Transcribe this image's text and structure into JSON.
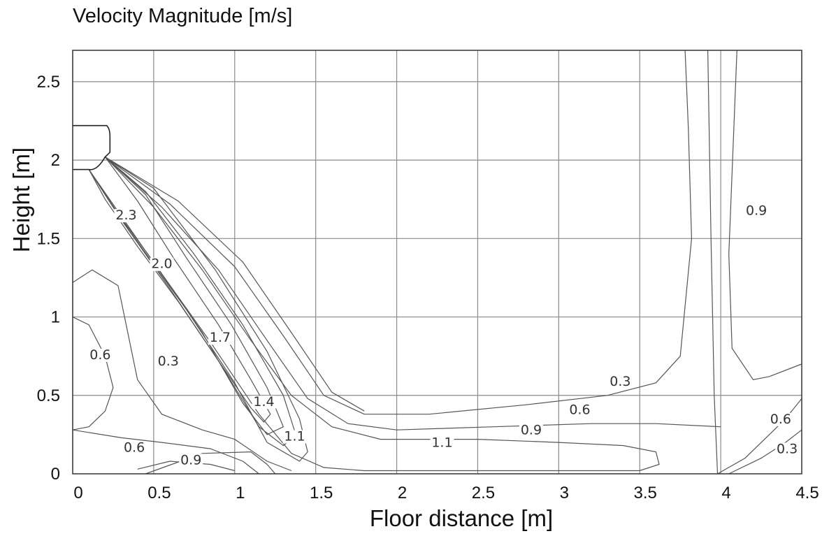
{
  "chart_data": {
    "type": "contour",
    "title": "Velocity Magnitude [m/s]",
    "xlabel": "Floor distance [m]",
    "ylabel": "Height [m]",
    "xlim": [
      0,
      4.5
    ],
    "ylim": [
      0,
      2.7
    ],
    "xticks": [
      "0",
      "0.5",
      "1",
      "1.5",
      "2",
      "2.5",
      "3",
      "3.5",
      "4",
      "4.5"
    ],
    "yticks": [
      "0",
      "0.5",
      "1",
      "1.5",
      "2",
      "2.5"
    ],
    "grid": true,
    "contour_labels": [
      {
        "text": "2.3",
        "x": 0.33,
        "y": 1.63
      },
      {
        "text": "2.0",
        "x": 0.55,
        "y": 1.32
      },
      {
        "text": "1.7",
        "x": 0.91,
        "y": 0.85
      },
      {
        "text": "1.4",
        "x": 1.18,
        "y": 0.44
      },
      {
        "text": "1.1",
        "x": 1.37,
        "y": 0.22
      },
      {
        "text": "0.6",
        "x": 0.17,
        "y": 0.74
      },
      {
        "text": "0.3",
        "x": 0.59,
        "y": 0.7
      },
      {
        "text": "0.6",
        "x": 0.38,
        "y": 0.15
      },
      {
        "text": "0.9",
        "x": 0.73,
        "y": 0.07
      },
      {
        "text": "1.1",
        "x": 2.28,
        "y": 0.18
      },
      {
        "text": "0.9",
        "x": 2.83,
        "y": 0.26
      },
      {
        "text": "0.6",
        "x": 3.13,
        "y": 0.39
      },
      {
        "text": "0.3",
        "x": 3.38,
        "y": 0.57
      },
      {
        "text": "0.9",
        "x": 4.22,
        "y": 1.66
      },
      {
        "text": "0.6",
        "x": 4.37,
        "y": 0.33
      },
      {
        "text": "0.3",
        "x": 4.41,
        "y": 0.14
      }
    ],
    "contours": [
      [
        [
          0.1,
          1.94
        ],
        [
          0.2,
          1.75
        ],
        [
          0.4,
          1.45
        ],
        [
          0.65,
          1.1
        ],
        [
          0.9,
          0.72
        ],
        [
          1.1,
          0.42
        ],
        [
          1.18,
          0.33
        ],
        [
          1.22,
          0.38
        ],
        [
          1.1,
          0.6
        ],
        [
          0.9,
          0.95
        ],
        [
          0.62,
          1.38
        ],
        [
          0.4,
          1.74
        ],
        [
          0.2,
          2.02
        ]
      ],
      [
        [
          0.1,
          1.94
        ],
        [
          0.25,
          1.7
        ],
        [
          0.5,
          1.35
        ],
        [
          0.8,
          0.9
        ],
        [
          1.05,
          0.45
        ],
        [
          1.2,
          0.25
        ],
        [
          1.3,
          0.3
        ],
        [
          1.2,
          0.55
        ],
        [
          0.98,
          0.95
        ],
        [
          0.7,
          1.38
        ],
        [
          0.45,
          1.78
        ],
        [
          0.2,
          2.02
        ]
      ],
      [
        [
          0.1,
          1.94
        ],
        [
          0.3,
          1.62
        ],
        [
          0.6,
          1.18
        ],
        [
          0.9,
          0.72
        ],
        [
          1.15,
          0.3
        ],
        [
          1.3,
          0.18
        ],
        [
          1.38,
          0.24
        ],
        [
          1.3,
          0.5
        ],
        [
          1.05,
          0.95
        ],
        [
          0.75,
          1.4
        ],
        [
          0.45,
          1.8
        ],
        [
          0.2,
          2.02
        ]
      ],
      [
        [
          0.1,
          1.94
        ],
        [
          0.35,
          1.55
        ],
        [
          0.7,
          1.05
        ],
        [
          1.0,
          0.58
        ],
        [
          1.2,
          0.2
        ],
        [
          1.4,
          0.08
        ],
        [
          1.45,
          0.14
        ],
        [
          1.4,
          0.35
        ],
        [
          1.2,
          0.78
        ],
        [
          0.88,
          1.3
        ],
        [
          0.5,
          1.82
        ],
        [
          0.2,
          2.02
        ]
      ],
      [
        [
          0.1,
          1.94
        ],
        [
          0.45,
          1.42
        ],
        [
          0.85,
          0.84
        ],
        [
          1.15,
          0.38
        ],
        [
          1.35,
          0.13
        ],
        [
          1.55,
          0.04
        ],
        [
          1.8,
          0.02
        ],
        [
          3.5,
          0.02
        ]
      ],
      [
        [
          0.2,
          2.02
        ],
        [
          0.5,
          1.7
        ],
        [
          0.8,
          1.3
        ],
        [
          1.1,
          0.85
        ],
        [
          1.35,
          0.5
        ],
        [
          1.6,
          0.3
        ],
        [
          1.9,
          0.22
        ],
        [
          2.5,
          0.22
        ],
        [
          3.0,
          0.2
        ],
        [
          3.4,
          0.18
        ],
        [
          3.6,
          0.14
        ],
        [
          3.62,
          0.06
        ],
        [
          3.5,
          0.02
        ]
      ],
      [
        [
          0.2,
          2.02
        ],
        [
          0.55,
          1.7
        ],
        [
          0.9,
          1.3
        ],
        [
          1.2,
          0.85
        ],
        [
          1.45,
          0.48
        ],
        [
          1.7,
          0.32
        ],
        [
          2.0,
          0.28
        ],
        [
          2.6,
          0.3
        ],
        [
          3.2,
          0.32
        ],
        [
          3.6,
          0.32
        ],
        [
          4.0,
          0.3
        ]
      ],
      [
        [
          0.2,
          2.02
        ],
        [
          0.6,
          1.72
        ],
        [
          1.0,
          1.32
        ],
        [
          1.3,
          0.88
        ],
        [
          1.55,
          0.5
        ],
        [
          1.8,
          0.38
        ],
        [
          2.2,
          0.38
        ],
        [
          2.8,
          0.44
        ],
        [
          3.3,
          0.5
        ],
        [
          3.6,
          0.58
        ],
        [
          3.75,
          0.75
        ],
        [
          3.82,
          1.5
        ],
        [
          3.8,
          2.2
        ],
        [
          3.78,
          2.7
        ]
      ],
      [
        [
          0.2,
          2.02
        ],
        [
          0.65,
          1.74
        ],
        [
          1.05,
          1.35
        ],
        [
          1.35,
          0.9
        ],
        [
          1.6,
          0.52
        ],
        [
          1.8,
          0.4
        ]
      ],
      [
        [
          0,
          1.0
        ],
        [
          0.1,
          0.95
        ],
        [
          0.2,
          0.75
        ],
        [
          0.25,
          0.55
        ],
        [
          0.2,
          0.4
        ],
        [
          0.1,
          0.3
        ],
        [
          0,
          0.28
        ]
      ],
      [
        [
          0,
          1.22
        ],
        [
          0.12,
          1.3
        ],
        [
          0.28,
          1.2
        ],
        [
          0.33,
          0.95
        ],
        [
          0.4,
          0.6
        ],
        [
          0.55,
          0.38
        ],
        [
          0.8,
          0.28
        ],
        [
          1.0,
          0.22
        ],
        [
          1.2,
          0.08
        ],
        [
          1.35,
          0.02
        ]
      ],
      [
        [
          0,
          0.28
        ],
        [
          0.3,
          0.23
        ],
        [
          0.55,
          0.2
        ],
        [
          0.85,
          0.16
        ],
        [
          1.05,
          0.08
        ],
        [
          1.15,
          0.0
        ]
      ],
      [
        [
          0.4,
          0.03
        ],
        [
          0.6,
          0.08
        ],
        [
          0.85,
          0.06
        ],
        [
          1.0,
          0.02
        ]
      ],
      [
        [
          0.45,
          0.0
        ],
        [
          0.8,
          0.13
        ],
        [
          1.1,
          0.14
        ],
        [
          1.2,
          0.06
        ],
        [
          1.25,
          0.0
        ]
      ],
      [
        [
          3.92,
          2.7
        ],
        [
          3.94,
          1.5
        ],
        [
          3.96,
          0.5
        ],
        [
          3.98,
          0.0
        ]
      ],
      [
        [
          4.1,
          2.7
        ],
        [
          4.05,
          1.4
        ],
        [
          4.07,
          0.8
        ],
        [
          4.2,
          0.6
        ],
        [
          4.3,
          0.62
        ],
        [
          4.5,
          0.7
        ]
      ],
      [
        [
          3.98,
          0.0
        ],
        [
          4.15,
          0.1
        ],
        [
          4.3,
          0.25
        ],
        [
          4.4,
          0.35
        ],
        [
          4.5,
          0.48
        ]
      ],
      [
        [
          4.05,
          0.0
        ],
        [
          4.25,
          0.1
        ],
        [
          4.4,
          0.2
        ],
        [
          4.5,
          0.28
        ]
      ]
    ]
  }
}
